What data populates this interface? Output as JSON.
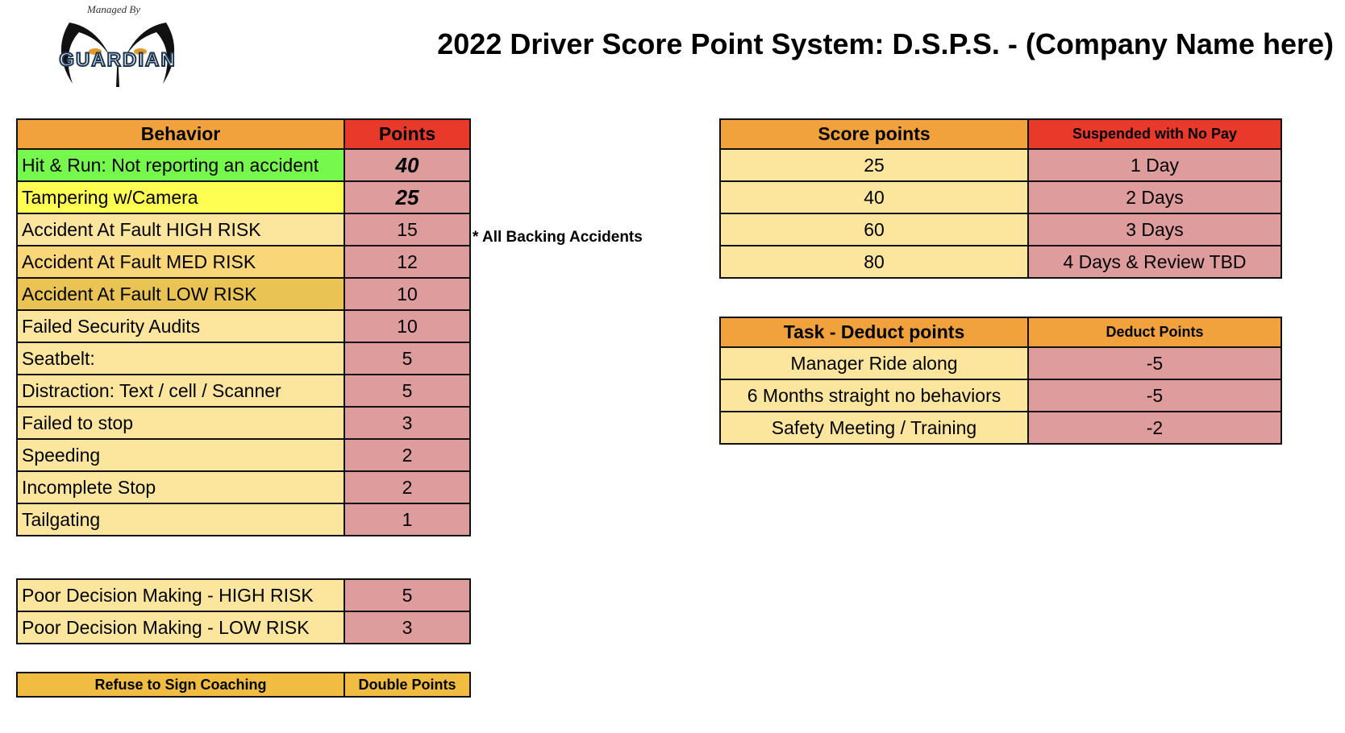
{
  "logo": {
    "tagline": "Managed By",
    "brand": "GUARDIAN"
  },
  "title": "2022 Driver Score Point System: D.S.P.S. - (Company Name here)",
  "note": "* All Backing Accidents",
  "colors": {
    "header_orange": "#f1a23c",
    "header_red": "#e8392b",
    "green": "#76f94c",
    "yellow": "#fdfd52",
    "light_yellow": "#fce59d",
    "med_yellow": "#f9d778",
    "low_yellow": "#e9c354",
    "pink": "#df9c9c",
    "refuse": "#f0bd42"
  },
  "behavior_table": {
    "headers": [
      "Behavior",
      "Points"
    ],
    "rows": [
      {
        "behavior": "Hit & Run: Not reporting an accident",
        "points": "40",
        "color": "green",
        "emph": true
      },
      {
        "behavior": "Tampering w/Camera",
        "points": "25",
        "color": "yellow",
        "emph": true
      },
      {
        "behavior": "Accident At Fault HIGH RISK",
        "points": "15",
        "color": "light_yellow"
      },
      {
        "behavior": "Accident At Fault MED RISK",
        "points": "12",
        "color": "med_yellow"
      },
      {
        "behavior": "Accident At Fault LOW RISK",
        "points": "10",
        "color": "low_yellow"
      },
      {
        "behavior": "Failed Security Audits",
        "points": "10",
        "color": "light_yellow"
      },
      {
        "behavior": "Seatbelt:",
        "points": "5",
        "color": "light_yellow"
      },
      {
        "behavior": "Distraction: Text / cell / Scanner",
        "points": "5",
        "color": "light_yellow"
      },
      {
        "behavior": "Failed to stop",
        "points": "3",
        "color": "light_yellow"
      },
      {
        "behavior": "Speeding",
        "points": "2",
        "color": "light_yellow"
      },
      {
        "behavior": "Incomplete Stop",
        "points": "2",
        "color": "light_yellow"
      },
      {
        "behavior": "Tailgating",
        "points": "1",
        "color": "light_yellow"
      }
    ]
  },
  "decision_table": {
    "rows": [
      {
        "behavior": "Poor Decision Making - HIGH RISK",
        "points": "5"
      },
      {
        "behavior": "Poor Decision Making - LOW RISK",
        "points": "3"
      }
    ]
  },
  "refuse_row": {
    "label": "Refuse to Sign Coaching",
    "value": "Double Points"
  },
  "suspension_table": {
    "headers": [
      "Score points",
      "Suspended with No Pay"
    ],
    "rows": [
      {
        "score": "25",
        "suspension": "1 Day"
      },
      {
        "score": "40",
        "suspension": "2 Days"
      },
      {
        "score": "60",
        "suspension": "3 Days"
      },
      {
        "score": "80",
        "suspension": "4 Days & Review TBD"
      }
    ]
  },
  "deduct_table": {
    "headers": [
      "Task - Deduct points",
      "Deduct Points"
    ],
    "rows": [
      {
        "task": "Manager Ride along",
        "points": "-5"
      },
      {
        "task": "6 Months straight no behaviors",
        "points": "-5"
      },
      {
        "task": "Safety Meeting / Training",
        "points": "-2"
      }
    ]
  }
}
